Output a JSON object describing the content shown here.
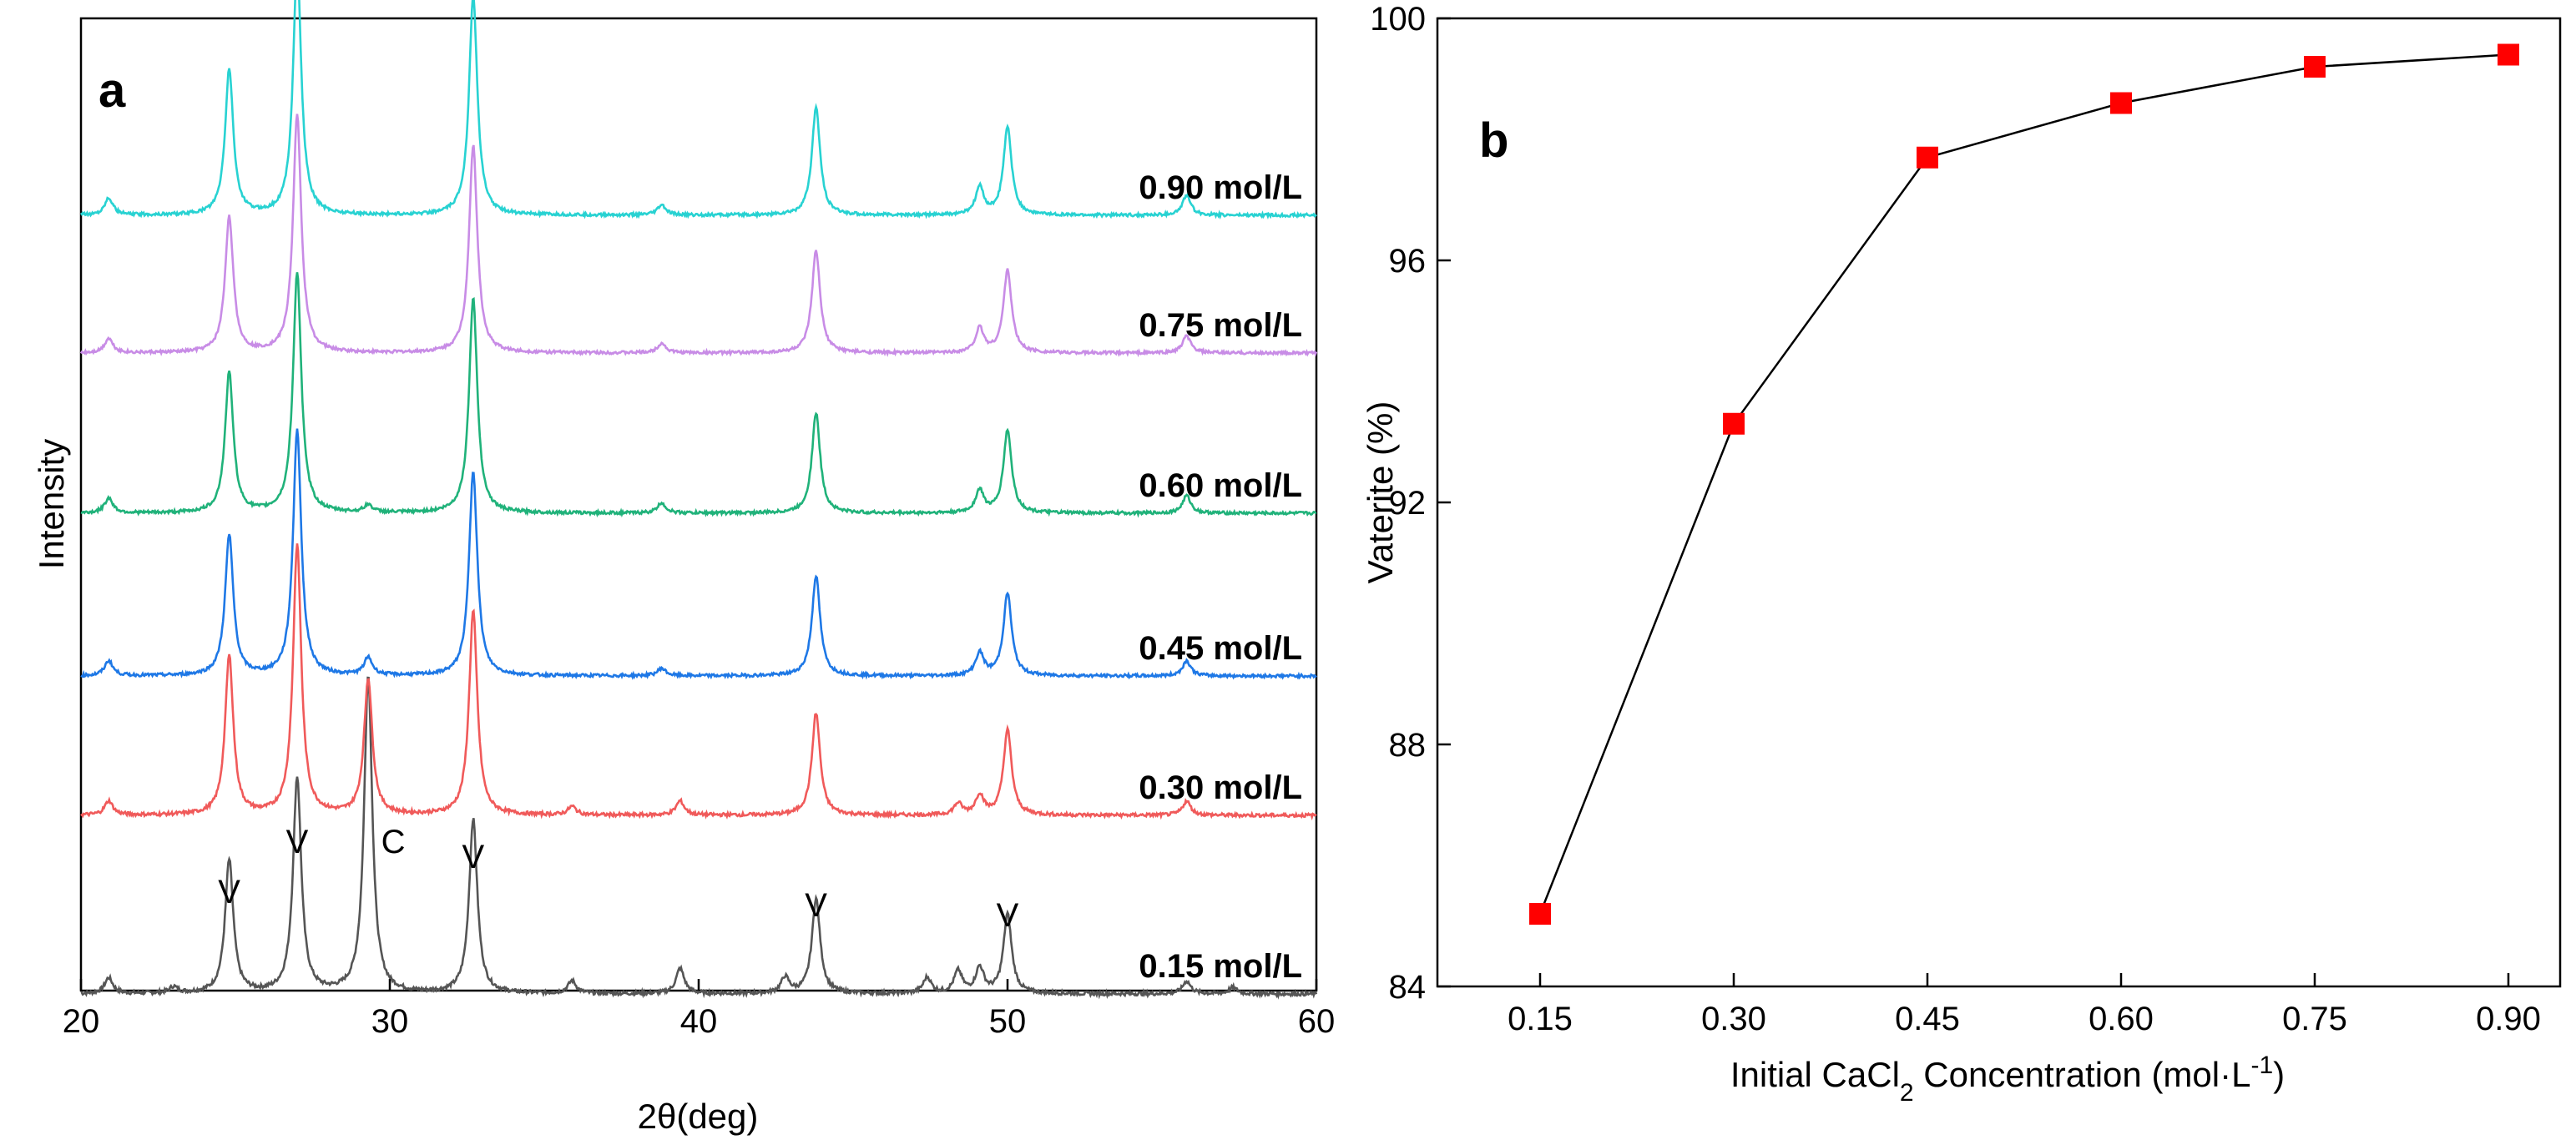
{
  "chart_data": [
    {
      "panel": "a",
      "type": "line",
      "xlabel": "2θ(deg)",
      "ylabel": "Intensity",
      "xlim": [
        20,
        60
      ],
      "xticks": [
        20,
        30,
        40,
        50,
        60
      ],
      "series": [
        {
          "name": "0.15 mol/L",
          "color": "#555555",
          "peaks": [
            [
              20.9,
              0.05
            ],
            [
              23.0,
              0.02
            ],
            [
              24.8,
              0.42
            ],
            [
              27.0,
              0.68
            ],
            [
              29.3,
              1.0
            ],
            [
              32.7,
              0.55
            ],
            [
              35.9,
              0.04
            ],
            [
              39.4,
              0.08
            ],
            [
              42.8,
              0.05
            ],
            [
              43.8,
              0.3
            ],
            [
              47.4,
              0.05
            ],
            [
              48.4,
              0.07
            ],
            [
              49.1,
              0.08
            ],
            [
              50.0,
              0.25
            ],
            [
              55.8,
              0.04
            ],
            [
              57.3,
              0.02
            ]
          ]
        },
        {
          "name": "0.30 mol/L",
          "color": "#f05a5a",
          "peaks": [
            [
              20.9,
              0.05
            ],
            [
              24.8,
              0.56
            ],
            [
              27.0,
              0.95
            ],
            [
              29.3,
              0.48
            ],
            [
              32.7,
              0.72
            ],
            [
              35.9,
              0.03
            ],
            [
              39.4,
              0.05
            ],
            [
              43.8,
              0.36
            ],
            [
              48.4,
              0.04
            ],
            [
              49.1,
              0.07
            ],
            [
              50.0,
              0.3
            ],
            [
              55.8,
              0.05
            ]
          ]
        },
        {
          "name": "0.45 mol/L",
          "color": "#1e78e6",
          "peaks": [
            [
              20.9,
              0.06
            ],
            [
              24.8,
              0.56
            ],
            [
              27.0,
              0.98
            ],
            [
              29.3,
              0.07
            ],
            [
              32.7,
              0.82
            ],
            [
              38.8,
              0.03
            ],
            [
              43.8,
              0.4
            ],
            [
              49.1,
              0.09
            ],
            [
              50.0,
              0.33
            ],
            [
              55.8,
              0.06
            ]
          ]
        },
        {
          "name": "0.60 mol/L",
          "color": "#20b27a",
          "peaks": [
            [
              20.9,
              0.06
            ],
            [
              24.8,
              0.56
            ],
            [
              27.0,
              0.96
            ],
            [
              29.3,
              0.03
            ],
            [
              32.7,
              0.86
            ],
            [
              38.8,
              0.04
            ],
            [
              43.8,
              0.4
            ],
            [
              49.1,
              0.09
            ],
            [
              50.0,
              0.33
            ],
            [
              55.8,
              0.07
            ]
          ]
        },
        {
          "name": "0.75 mol/L",
          "color": "#c88ce6",
          "peaks": [
            [
              20.9,
              0.06
            ],
            [
              24.8,
              0.56
            ],
            [
              27.0,
              0.98
            ],
            [
              32.7,
              0.86
            ],
            [
              38.8,
              0.04
            ],
            [
              43.8,
              0.42
            ],
            [
              49.1,
              0.1
            ],
            [
              50.0,
              0.34
            ],
            [
              55.8,
              0.07
            ]
          ]
        },
        {
          "name": "0.90 mol/L",
          "color": "#28d2d2",
          "peaks": [
            [
              20.9,
              0.07
            ],
            [
              24.8,
              0.58
            ],
            [
              27.0,
              1.0
            ],
            [
              32.7,
              0.88
            ],
            [
              38.8,
              0.04
            ],
            [
              43.8,
              0.43
            ],
            [
              49.1,
              0.11
            ],
            [
              50.0,
              0.35
            ],
            [
              55.8,
              0.08
            ]
          ]
        }
      ],
      "annotations": [
        {
          "text": "V",
          "x": 24.8
        },
        {
          "text": "V",
          "x": 27.0
        },
        {
          "text": "C",
          "x": 29.3
        },
        {
          "text": "V",
          "x": 32.7
        },
        {
          "text": "V",
          "x": 43.8
        },
        {
          "text": "V",
          "x": 50.0
        }
      ]
    },
    {
      "panel": "b",
      "type": "line",
      "xlabel_parts": [
        "Initial CaCl",
        "2",
        " Concentration (mol·L",
        "-1",
        ")"
      ],
      "ylabel": "Vaterite (%)",
      "ylim": [
        84,
        100
      ],
      "yticks": [
        84,
        88,
        92,
        96,
        100
      ],
      "categories": [
        "0.15",
        "0.30",
        "0.45",
        "0.60",
        "0.75",
        "0.90"
      ],
      "values": [
        85.2,
        93.3,
        97.7,
        98.6,
        99.2,
        99.4
      ],
      "marker_color": "#ff0000",
      "line_color": "#000000"
    }
  ]
}
